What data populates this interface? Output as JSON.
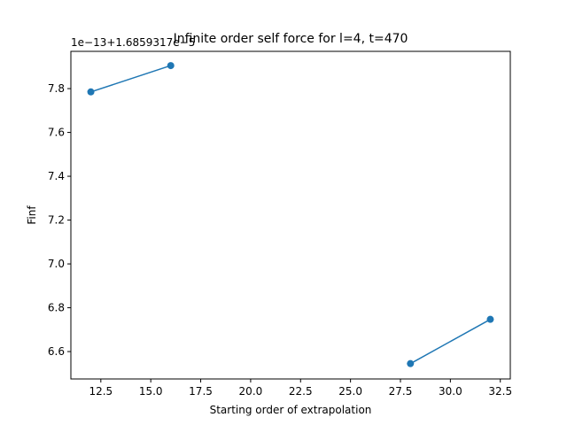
{
  "chart_data": {
    "type": "line",
    "title": "Infinite order self force for l=4, t=470",
    "xlabel": "Starting order of extrapolation",
    "ylabel": "Finf",
    "y_offset_text": "1e−13+1.6859317e−5",
    "xlim": [
      11.0,
      33.0
    ],
    "ylim": [
      6.475,
      7.97
    ],
    "x_ticks": [
      12.5,
      15.0,
      17.5,
      20.0,
      22.5,
      25.0,
      27.5,
      30.0,
      32.5
    ],
    "x_tick_labels": [
      "12.5",
      "15.0",
      "17.5",
      "20.0",
      "22.5",
      "25.0",
      "27.5",
      "30.0",
      "32.5"
    ],
    "y_ticks": [
      6.6,
      6.8,
      7.0,
      7.2,
      7.4,
      7.6,
      7.8
    ],
    "y_tick_labels": [
      "6.6",
      "6.8",
      "7.0",
      "7.2",
      "7.4",
      "7.6",
      "7.8"
    ],
    "grid": false,
    "series": [
      {
        "color": "#1f77b4",
        "segments": [
          {
            "x": [
              12,
              16
            ],
            "y": [
              7.785,
              7.905
            ]
          },
          {
            "x": [
              28,
              32
            ],
            "y": [
              6.545,
              6.747
            ]
          }
        ]
      }
    ]
  }
}
